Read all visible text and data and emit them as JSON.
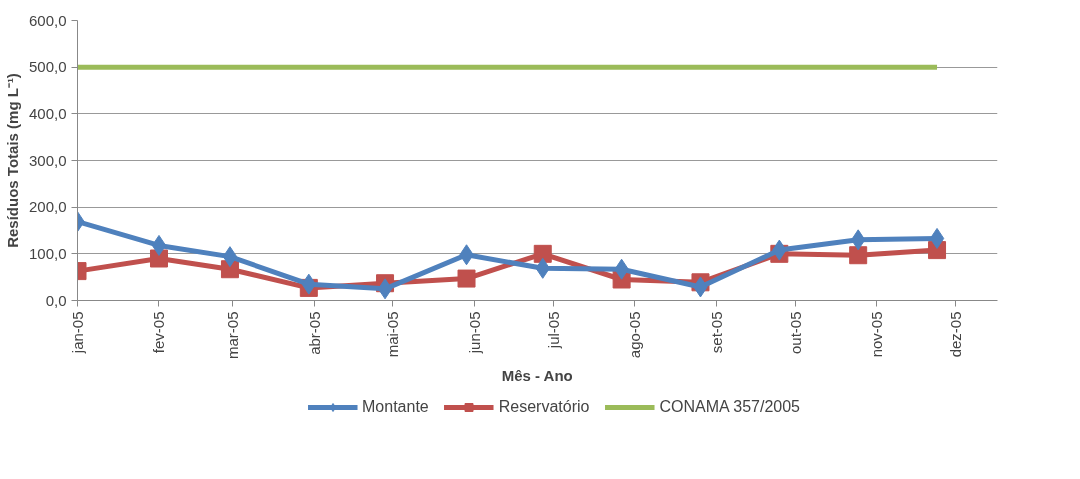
{
  "chart_data": {
    "type": "line",
    "xlabel": "Mês - Ano",
    "ylabel": "Resíduos Totais (mg L⁻¹)",
    "x": [
      "2005-01-01",
      "2005-02-01",
      "2005-02-28",
      "2005-03-30",
      "2005-04-28",
      "2005-05-29",
      "2005-06-27",
      "2005-07-27",
      "2005-08-26",
      "2005-09-25",
      "2005-10-25",
      "2005-11-24"
    ],
    "series": [
      {
        "name": "Montante",
        "color": "#4f81bd",
        "marker": "diamond",
        "values": [
          169,
          118,
          94,
          35,
          25,
          98,
          69,
          67,
          29,
          108,
          130,
          133
        ]
      },
      {
        "name": "Reservatório",
        "color": "#c0504d",
        "marker": "square",
        "values": [
          63,
          90,
          67,
          27,
          37,
          47,
          100,
          45,
          39,
          100,
          97,
          108
        ]
      },
      {
        "name": "CONAMA 357/2005",
        "color": "#9bbb59",
        "marker": "none",
        "values": [
          500,
          500,
          500,
          500,
          500,
          500,
          500,
          500,
          500,
          500,
          500,
          500
        ]
      }
    ],
    "ylim": [
      0,
      600
    ],
    "yticks": [
      {
        "value": 0,
        "label": "0,0"
      },
      {
        "value": 100,
        "label": "100,0"
      },
      {
        "value": 200,
        "label": "200,0"
      },
      {
        "value": 300,
        "label": "300,0"
      },
      {
        "value": 400,
        "label": "400,0"
      },
      {
        "value": 500,
        "label": "500,0"
      },
      {
        "value": 600,
        "label": "600,0"
      }
    ],
    "xlim": [
      "2005-01-01",
      "2005-12-17"
    ],
    "xticks": [
      {
        "value": "2005-01-01",
        "label": "jan-05"
      },
      {
        "value": "2005-02-01",
        "label": "fev-05"
      },
      {
        "value": "2005-03-01",
        "label": "mar-05"
      },
      {
        "value": "2005-04-01",
        "label": "abr-05"
      },
      {
        "value": "2005-05-01",
        "label": "mai-05"
      },
      {
        "value": "2005-06-01",
        "label": "jun-05"
      },
      {
        "value": "2005-07-01",
        "label": "jul-05"
      },
      {
        "value": "2005-08-01",
        "label": "ago-05"
      },
      {
        "value": "2005-09-01",
        "label": "set-05"
      },
      {
        "value": "2005-10-01",
        "label": "out-05"
      },
      {
        "value": "2005-11-01",
        "label": "nov-05"
      },
      {
        "value": "2005-12-01",
        "label": "dez-05"
      }
    ],
    "grid": "y",
    "legend": "bottom",
    "line_style": "solid"
  }
}
